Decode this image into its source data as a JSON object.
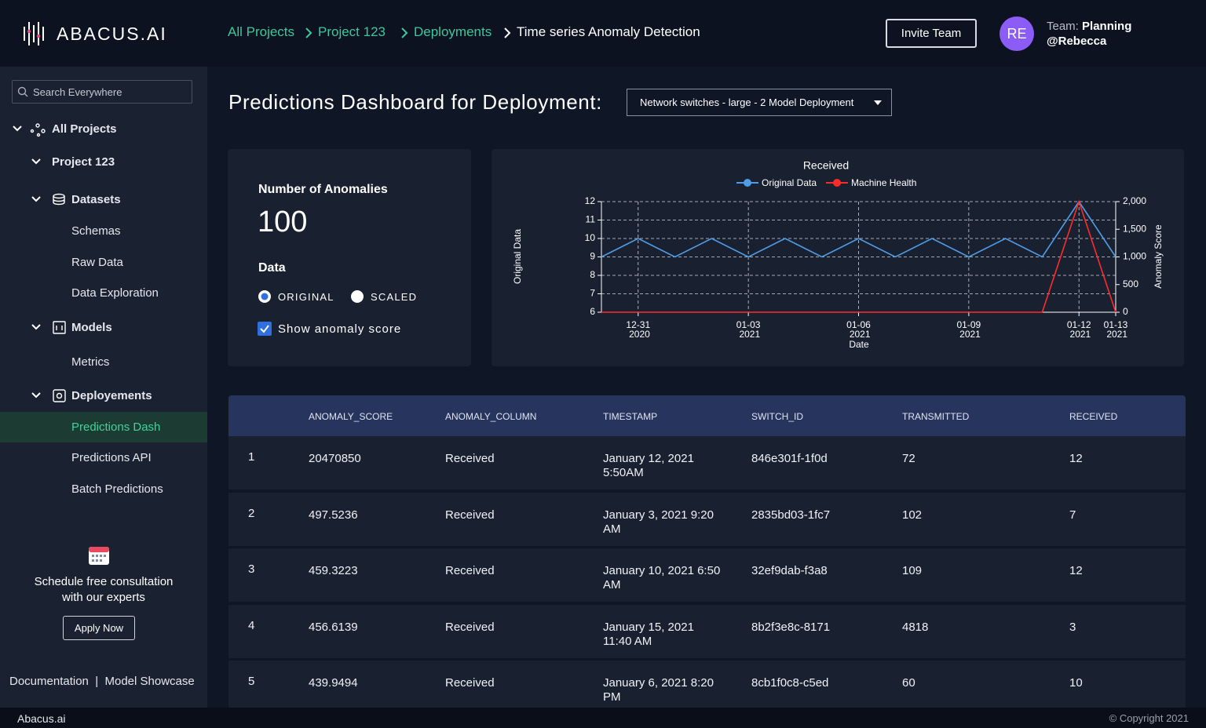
{
  "header": {
    "logo": "ABACUS.AI",
    "breadcrumbs": [
      "All Projects",
      "Project 123",
      "Deployments",
      "Time series Anomaly Detection"
    ],
    "invite": "Invite Team",
    "avatar": "RE",
    "team_label": "Team:",
    "team": "Planning",
    "user": "@Rebecca"
  },
  "sidebar": {
    "search": "Search Everywhere",
    "nav": [
      "All Projects",
      "Project 123",
      "Datasets",
      "Schemas",
      "Raw Data",
      "Data Exploration",
      "Models",
      "Metrics",
      "Deployements",
      "Predictions Dash",
      "Predictions API",
      "Batch Predictions"
    ],
    "promo": "Schedule free consultation with our experts",
    "apply": "Apply Now",
    "links": [
      "Documentation",
      "Model Showcase"
    ],
    "separator": "|"
  },
  "main": {
    "title": "Predictions Dashboard for Deployment:",
    "deployment": "Network switches - large - 2 Model Deployment"
  },
  "summary": {
    "label": "Number of Anomalies",
    "count": "100",
    "data_label": "Data",
    "options": [
      "ORIGINAL",
      "SCALED"
    ],
    "checkbox": "Show anomaly score"
  },
  "chart_data": {
    "type": "line",
    "title": "Received",
    "x_label": "Date",
    "y_label": "Original Data",
    "y2_label": "Anomaly Score",
    "x": [
      "2020-12-30",
      "2020-12-31",
      "2021-01-01",
      "2021-01-02",
      "2021-01-03",
      "2021-01-04",
      "2021-01-05",
      "2021-01-06",
      "2021-01-07",
      "2021-01-08",
      "2021-01-09",
      "2021-01-10",
      "2021-01-11",
      "2021-01-12",
      "2021-01-13"
    ],
    "series": [
      {
        "name": "Original Data",
        "color": "#4f9de6",
        "values": [
          9,
          10,
          9,
          10,
          9,
          10,
          9,
          10,
          9,
          10,
          9,
          10,
          9,
          12,
          9
        ]
      },
      {
        "name": "Machine Health",
        "color": "#ff2b2b",
        "axis": "y2",
        "values": [
          0,
          0,
          0,
          0,
          0,
          0,
          0,
          0,
          0,
          0,
          0,
          0,
          0,
          2000,
          0
        ]
      }
    ],
    "xlim": [
      "2020-12-30",
      "2021-01-13"
    ],
    "xticks": [
      {
        "value": "2020-12-31",
        "label": "12-31 2020"
      },
      {
        "value": "2021-01-03",
        "label": "01-03 2021"
      },
      {
        "value": "2021-01-06",
        "label": "01-06 2021"
      },
      {
        "value": "2021-01-09",
        "label": "01-09 2021"
      },
      {
        "value": "2021-01-12",
        "label": "01-12 2021"
      },
      {
        "value": "2021-01-13",
        "label": "01-13 2021"
      }
    ],
    "ylim": [
      6,
      12
    ],
    "yticks": [
      6,
      7,
      8,
      9,
      10,
      11,
      12
    ],
    "y2lim": [
      0,
      2000
    ],
    "y2ticks": [
      0,
      500,
      {
        "value": 1000,
        "label": "1,000"
      },
      {
        "value": 1500,
        "label": "1,500"
      },
      {
        "value": 2000,
        "label": "2,000"
      }
    ],
    "grid": true,
    "legend": "top"
  },
  "table": {
    "columns": [
      "ANOMALY_SCORE",
      "ANOMALY_COLUMN",
      "TIMESTAMP",
      "SWITCH_ID",
      "TRANSMITTED",
      "RECEIVED"
    ],
    "rows": [
      [
        "1",
        "20470850",
        "Received",
        "January 12, 2021 5:50AM",
        "846e301f-1f0d",
        "72",
        "12"
      ],
      [
        "2",
        "497.5236",
        "Received",
        "January 3, 2021 9:20 AM",
        "2835bd03-1fc7",
        "102",
        "7"
      ],
      [
        "3",
        "459.3223",
        "Received",
        "January 10, 2021 6:50 AM",
        "32ef9dab-f3a8",
        "109",
        "12"
      ],
      [
        "4",
        "456.6139",
        "Received",
        "January 15, 2021 11:40 AM",
        "8b2f3e8c-8171",
        "4818",
        "3"
      ],
      [
        "5",
        "439.9494",
        "Received",
        "January 6, 2021 8:20 PM",
        "8cb1f0c8-c5ed",
        "60",
        "10"
      ]
    ]
  },
  "footer": {
    "brand": "Abacus.ai",
    "copyright": "© Copyright 2021"
  }
}
